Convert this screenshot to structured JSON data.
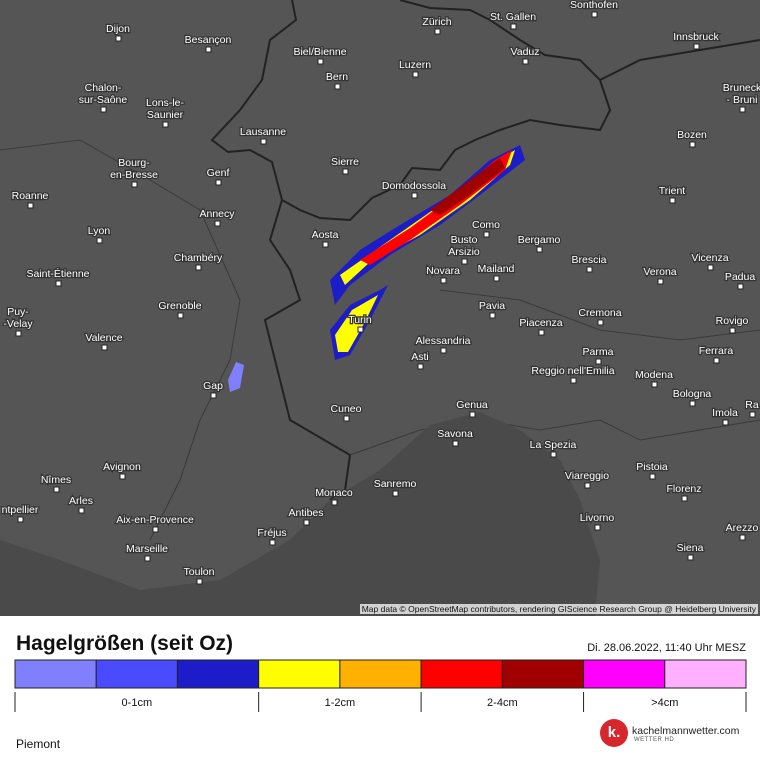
{
  "cities": [
    [
      "Dijon"
    ],
    [
      "Besançon"
    ],
    [
      "Biel/Bienne"
    ],
    [
      "Zürich"
    ],
    [
      "St. Gallen"
    ],
    [
      "Sonthofen"
    ],
    [
      "Innsbruck"
    ],
    [
      "Vaduz"
    ],
    [
      "Luzern"
    ],
    [
      "Bern"
    ],
    [
      "Chalon-",
      "sur-Saône"
    ],
    [
      "Lons-le-",
      "Saunier"
    ],
    [
      "Bruneck",
      "- Bruni"
    ],
    [
      "Lausanne"
    ],
    [
      "Bozen"
    ],
    [
      "Sierre"
    ],
    [
      "Bourg-",
      "en-Bresse"
    ],
    [
      "Genf"
    ],
    [
      "Domodossola"
    ],
    [
      "Trient"
    ],
    [
      "Roanne"
    ],
    [
      "Annecy"
    ],
    [
      "Como"
    ],
    [
      "Aosta"
    ],
    [
      "Lyon"
    ],
    [
      "Busto",
      "Arsizio"
    ],
    [
      "Bergamo"
    ],
    [
      "Chambéry"
    ],
    [
      "Brescia"
    ],
    [
      "Vicenza"
    ],
    [
      "Mailand"
    ],
    [
      "Novara"
    ],
    [
      "Saint-Étienne"
    ],
    [
      "Verona"
    ],
    [
      "Padua"
    ],
    [
      "Puy-",
      "-Velay"
    ],
    [
      "Grenoble"
    ],
    [
      "Pavia"
    ],
    [
      "Cremona"
    ],
    [
      "Turin"
    ],
    [
      "Piacenza"
    ],
    [
      "Rovigo"
    ],
    [
      "Valence"
    ],
    [
      "Alessandria"
    ],
    [
      "Parma"
    ],
    [
      "Ferrara"
    ],
    [
      "Asti"
    ],
    [
      "Reggio nell'Emilia"
    ],
    [
      "Modena"
    ],
    [
      "Gap"
    ],
    [
      "Bologna"
    ],
    [
      "Genua"
    ],
    [
      "Cuneo"
    ],
    [
      "Imola"
    ],
    [
      "Ra"
    ],
    [
      "Savona"
    ],
    [
      "La Spezia"
    ],
    [
      "Avignon"
    ],
    [
      "Pistoia"
    ],
    [
      "Viareggio"
    ],
    [
      "Nîmes"
    ],
    [
      "Sanremo"
    ],
    [
      "Florenz"
    ],
    [
      "Arles"
    ],
    [
      "Monaco"
    ],
    [
      "ntpellier"
    ],
    [
      "Antibes"
    ],
    [
      "Aix-en-Provence"
    ],
    [
      "Livorno"
    ],
    [
      "Arezzo"
    ],
    [
      "Fréjus"
    ],
    [
      "Marseille"
    ],
    [
      "Siena"
    ],
    [
      "Toulon"
    ]
  ],
  "attribution": "Map data © OpenStreetMap contributors, rendering GIScience Research Group @ Heidelberg University",
  "title": "Hagelgrößen (seit Oz)",
  "date": "Di. 28.06.2022, 11:40 Uhr MESZ",
  "legend": {
    "colors": [
      "#8080ff",
      "#4a4aff",
      "#1c1cc8",
      "#ffff00",
      "#ffb000",
      "#ff0000",
      "#a00000",
      "#ff00ff",
      "#ffb0ff"
    ],
    "labels": [
      "0-1cm",
      "1-2cm",
      "2-4cm",
      ">4cm"
    ]
  },
  "region": "Piemont",
  "logo": {
    "mark": "k.",
    "name": "kachelmannwetter.com",
    "sub": "WETTER HD"
  }
}
